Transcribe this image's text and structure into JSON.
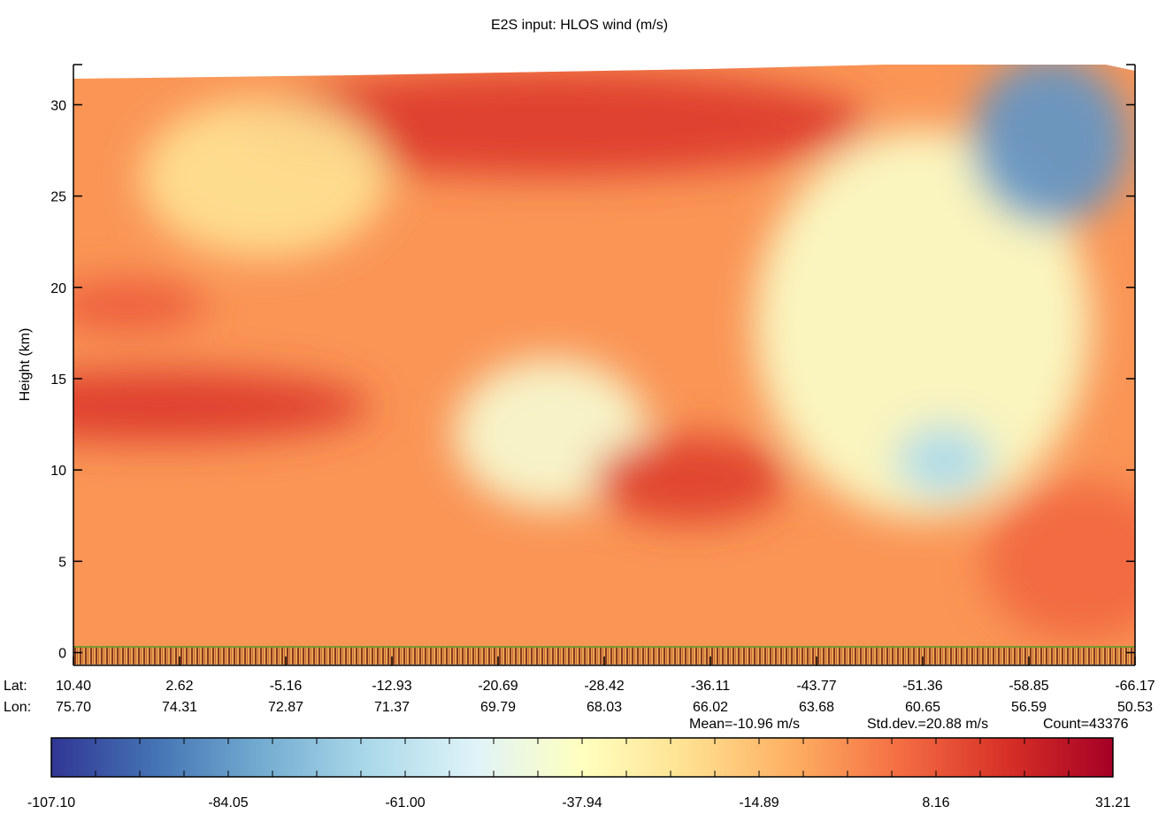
{
  "chart_data": {
    "type": "heatmap",
    "title": "E2S input: HLOS wind (m/s)",
    "ylabel": "Height (km)",
    "xlabel": "",
    "ylim": [
      -0.7,
      32.2
    ],
    "y_ticks": [
      0,
      5,
      10,
      15,
      20,
      25,
      30
    ],
    "x_axis_rows": [
      {
        "label": "Lat:",
        "values": [
          "10.40",
          "2.62",
          "-5.16",
          "-12.93",
          "-20.69",
          "-28.42",
          "-36.11",
          "-43.77",
          "-51.36",
          "-58.85",
          "-66.17"
        ]
      },
      {
        "label": "Lon:",
        "values": [
          "75.70",
          "74.31",
          "72.87",
          "71.37",
          "69.79",
          "68.03",
          "66.02",
          "63.68",
          "60.65",
          "56.59",
          "50.53"
        ]
      }
    ],
    "stats": {
      "mean": "Mean=-10.96 m/s",
      "std": "Std.dev.=20.88 m/s",
      "count": "Count=43376"
    },
    "colorbar": {
      "min": -107.1,
      "max": 31.21,
      "tick_labels": [
        "-107.10",
        "-84.05",
        "-61.00",
        "-37.94",
        "-14.89",
        "8.16",
        "31.21"
      ],
      "colors": [
        "#313695",
        "#4575b4",
        "#74add1",
        "#abd9e9",
        "#e0f3f8",
        "#ffffbf",
        "#fee090",
        "#fdae61",
        "#f46d43",
        "#d73027",
        "#a50026"
      ]
    },
    "field_features": [
      {
        "feature": "background",
        "value": -5
      },
      {
        "feature": "upper-left warm band",
        "x_frac": 0.45,
        "height_km": 29,
        "value": 15
      },
      {
        "feature": "upper-left cool patch",
        "x_frac": 0.18,
        "height_km": 26,
        "value": -25
      },
      {
        "feature": "left band 19 km",
        "x_frac": 0.05,
        "height_km": 19,
        "value": 8
      },
      {
        "feature": "left band 14 km",
        "x_frac": 0.08,
        "height_km": 13.5,
        "value": 15
      },
      {
        "feature": "central cool blob",
        "x_frac": 0.45,
        "height_km": 12,
        "value": -42
      },
      {
        "feature": "central-right warm blob",
        "x_frac": 0.58,
        "height_km": 9.5,
        "value": 14
      },
      {
        "feature": "right cool region",
        "x_frac": 0.8,
        "height_km": 18,
        "value": -40
      },
      {
        "feature": "upper-right minimum",
        "x_frac": 0.92,
        "height_km": 28,
        "value": -85
      },
      {
        "feature": "right blue blob",
        "x_frac": 0.82,
        "height_km": 10.5,
        "value": -65
      },
      {
        "feature": "lower-right warm region",
        "x_frac": 0.95,
        "height_km": 5,
        "value": 5
      }
    ]
  }
}
